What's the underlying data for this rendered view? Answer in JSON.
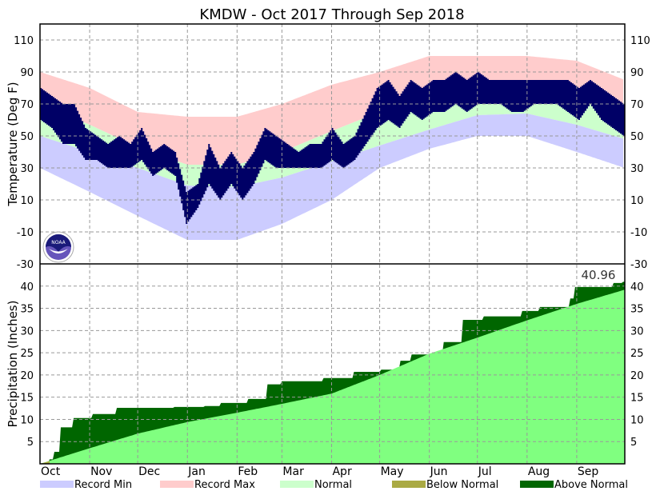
{
  "chart_data": {
    "type": "area",
    "title": "KMDW - Oct 2017 Through Sep 2018",
    "months": [
      "Oct",
      "Nov",
      "Dec",
      "Jan",
      "Feb",
      "Mar",
      "Apr",
      "May",
      "Jun",
      "Jul",
      "Aug",
      "Sep"
    ],
    "month_start_days": [
      0,
      31,
      61,
      92,
      123,
      151,
      182,
      212,
      243,
      273,
      304,
      335,
      365
    ],
    "temperature": {
      "ylabel": "Temperature (Deg F)",
      "ylim": [
        -30,
        120
      ],
      "ticks": [
        -30,
        -10,
        10,
        30,
        50,
        70,
        90,
        110
      ],
      "record_max_monthly": [
        90,
        80,
        65,
        62,
        62,
        70,
        82,
        90,
        100,
        100,
        100,
        97,
        85
      ],
      "record_min_monthly": [
        30,
        15,
        0,
        -15,
        -15,
        -5,
        10,
        30,
        42,
        50,
        50,
        40,
        30
      ],
      "normal_high_monthly": [
        70,
        57,
        43,
        32,
        32,
        40,
        53,
        65,
        77,
        84,
        83,
        77,
        68
      ],
      "normal_low_monthly": [
        50,
        40,
        30,
        19,
        18,
        24,
        34,
        44,
        54,
        63,
        64,
        57,
        48
      ],
      "observed_high_weekly": [
        80,
        75,
        70,
        70,
        55,
        50,
        45,
        50,
        45,
        55,
        40,
        45,
        40,
        15,
        20,
        45,
        30,
        40,
        30,
        40,
        55,
        50,
        45,
        40,
        45,
        45,
        55,
        45,
        50,
        65,
        80,
        85,
        75,
        85,
        80,
        85,
        85,
        90,
        85,
        90,
        85,
        85,
        85,
        85,
        85,
        85,
        85,
        85,
        80,
        85,
        80,
        75,
        70
      ],
      "observed_low_weekly": [
        60,
        55,
        45,
        45,
        35,
        35,
        30,
        30,
        30,
        35,
        25,
        30,
        25,
        -5,
        5,
        20,
        10,
        20,
        10,
        20,
        35,
        30,
        30,
        30,
        30,
        30,
        35,
        30,
        35,
        45,
        55,
        60,
        55,
        65,
        60,
        65,
        65,
        70,
        65,
        70,
        70,
        70,
        65,
        65,
        70,
        70,
        70,
        65,
        60,
        70,
        60,
        55,
        50
      ]
    },
    "precipitation": {
      "ylabel": "Precipitation (Inches)",
      "ylim": [
        0,
        45
      ],
      "ticks": [
        5,
        10,
        15,
        20,
        25,
        30,
        35,
        40
      ],
      "final_total_label": "40.96",
      "observed_cumulative": [
        [
          0,
          0
        ],
        [
          6,
          1.0
        ],
        [
          9,
          2.7
        ],
        [
          13,
          8.2
        ],
        [
          21,
          10.3
        ],
        [
          33,
          11.2
        ],
        [
          48,
          12.6
        ],
        [
          84,
          12.8
        ],
        [
          103,
          13.0
        ],
        [
          113,
          13.7
        ],
        [
          130,
          14.6
        ],
        [
          142,
          17.9
        ],
        [
          151,
          18.6
        ],
        [
          177,
          19.3
        ],
        [
          196,
          20.7
        ],
        [
          213,
          21.2
        ],
        [
          225,
          23.2
        ],
        [
          232,
          24.6
        ],
        [
          252,
          27.4
        ],
        [
          264,
          32.4
        ],
        [
          277,
          33.2
        ],
        [
          301,
          34.4
        ],
        [
          312,
          35.3
        ],
        [
          331,
          37.2
        ],
        [
          334,
          39.8
        ],
        [
          358,
          40.7
        ],
        [
          364,
          40.96
        ]
      ],
      "normal_cumulative": [
        [
          0,
          0
        ],
        [
          30,
          3.4
        ],
        [
          61,
          6.8
        ],
        [
          92,
          9.4
        ],
        [
          123,
          11.5
        ],
        [
          151,
          13.5
        ],
        [
          182,
          15.8
        ],
        [
          212,
          20.0
        ],
        [
          243,
          24.8
        ],
        [
          273,
          28.4
        ],
        [
          304,
          32.3
        ],
        [
          335,
          36.0
        ],
        [
          365,
          39.2
        ]
      ]
    },
    "legend": [
      {
        "label": "Record Min",
        "color": "#ccccff"
      },
      {
        "label": "Record Max",
        "color": "#ffcccc"
      },
      {
        "label": "Normal",
        "color": "#ccffcc"
      },
      {
        "label": "Below Normal",
        "color": "#aaaa44"
      },
      {
        "label": "Above Normal",
        "color": "#006600"
      }
    ],
    "colors": {
      "observed": "#000066",
      "normal_precip": "#80ff80",
      "grid": "#999999"
    }
  }
}
